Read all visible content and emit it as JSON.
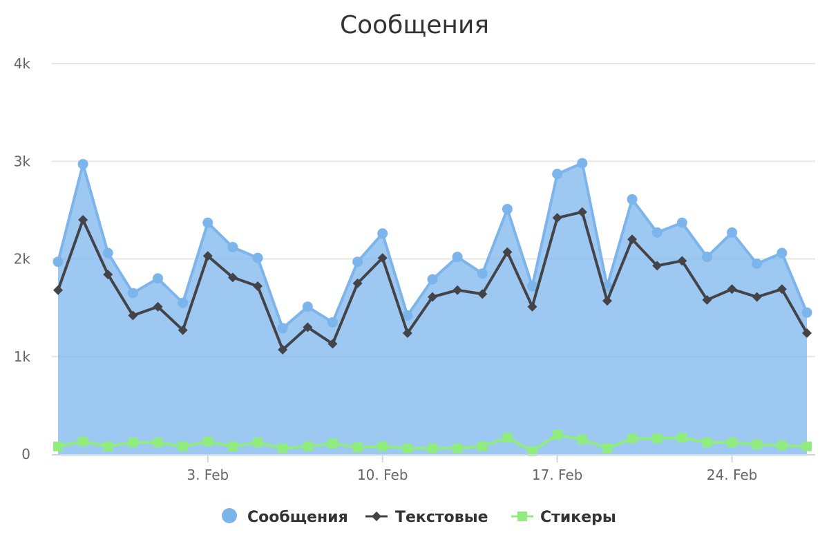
{
  "chart_data": {
    "type": "area",
    "title": "Сообщения",
    "xlabel": "",
    "ylabel": "",
    "x_start": "2019-01-28",
    "x_step_days": 1,
    "x_ticks": [
      {
        "date": "2019-02-03",
        "label": "3. Feb"
      },
      {
        "date": "2019-02-10",
        "label": "10. Feb"
      },
      {
        "date": "2019-02-17",
        "label": "17. Feb"
      },
      {
        "date": "2019-02-24",
        "label": "24. Feb"
      }
    ],
    "y_ticks": [
      {
        "value": 0,
        "label": "0"
      },
      {
        "value": 1000,
        "label": "1k"
      },
      {
        "value": 2000,
        "label": "2k"
      },
      {
        "value": 3000,
        "label": "3k"
      },
      {
        "value": 4000,
        "label": "4k"
      }
    ],
    "ylim": [
      0,
      4000
    ],
    "grid": true,
    "legend_position": "bottom-center",
    "series": [
      {
        "name": "Сообщения",
        "type": "area",
        "color": "#7cb5ec",
        "marker": "circle",
        "values": [
          1970,
          2970,
          2060,
          1650,
          1800,
          1550,
          2370,
          2120,
          2010,
          1290,
          1510,
          1350,
          1970,
          2260,
          1420,
          1790,
          2020,
          1850,
          2510,
          1720,
          2870,
          2980,
          1720,
          2610,
          2270,
          2370,
          2020,
          2270,
          1950,
          2060,
          1450
        ]
      },
      {
        "name": "Текстовые",
        "type": "line",
        "color": "#434348",
        "marker": "diamond",
        "values": [
          1680,
          2400,
          1840,
          1420,
          1510,
          1270,
          2030,
          1810,
          1720,
          1070,
          1300,
          1130,
          1750,
          2010,
          1240,
          1610,
          1680,
          1640,
          2070,
          1510,
          2420,
          2480,
          1570,
          2200,
          1930,
          1980,
          1580,
          1690,
          1610,
          1690,
          1240
        ]
      },
      {
        "name": "Стикеры",
        "type": "line",
        "color": "#90ed7d",
        "marker": "square",
        "values": [
          80,
          130,
          80,
          120,
          120,
          80,
          130,
          80,
          120,
          60,
          80,
          110,
          70,
          80,
          60,
          60,
          60,
          80,
          170,
          30,
          200,
          150,
          60,
          160,
          160,
          170,
          120,
          120,
          100,
          90,
          80
        ]
      }
    ]
  }
}
